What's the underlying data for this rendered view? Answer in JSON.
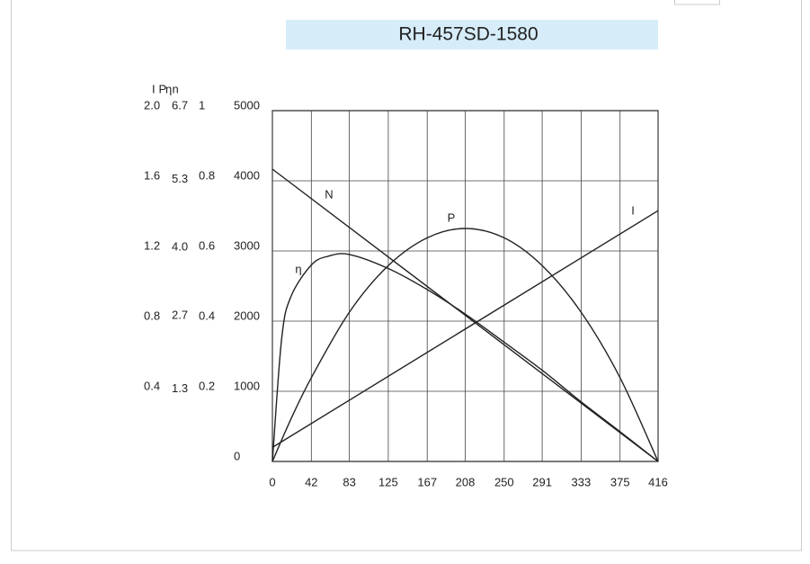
{
  "chart_data": {
    "type": "line",
    "title": "RH-457SD-1580",
    "xlim": [
      0,
      416
    ],
    "xticks": [
      0,
      42,
      83,
      125,
      167,
      208,
      250,
      291,
      333,
      375,
      416
    ],
    "axes": [
      {
        "name": "I",
        "lim": [
          0,
          2
        ],
        "ticks": [
          0.4,
          0.8,
          1.2,
          1.6,
          {
            "value": 2,
            "label": "2.0"
          }
        ]
      },
      {
        "name": "P",
        "lim": [
          0,
          6.7
        ],
        "ticks": [
          1.3,
          2.7,
          {
            "value": 4,
            "label": "4.0"
          },
          5.3,
          6.7
        ]
      },
      {
        "name": "η",
        "lim": [
          0,
          1
        ],
        "ticks": [
          0.2,
          0.4,
          0.6,
          0.8,
          1
        ]
      },
      {
        "name": "n",
        "lim": [
          0,
          5000
        ],
        "ticks": [
          0,
          1000,
          2000,
          3000,
          4000,
          5000
        ]
      }
    ],
    "grid": true,
    "color": "#222222",
    "series": [
      {
        "name": "N",
        "axis": "n",
        "x": [
          0,
          416
        ],
        "values": [
          4167,
          0
        ]
      },
      {
        "name": "P",
        "axis": "P",
        "x": [
          0,
          20,
          42,
          83,
          125,
          167,
          208,
          250,
          291,
          333,
          375,
          416
        ],
        "values": [
          0,
          0.81,
          1.6,
          2.85,
          3.74,
          4.27,
          4.45,
          4.27,
          3.74,
          2.85,
          1.6,
          0
        ]
      },
      {
        "name": "η",
        "axis": "η",
        "x": [
          0,
          10,
          20,
          42,
          60,
          83,
          125,
          167,
          208,
          250,
          291,
          333,
          375,
          416
        ],
        "values": [
          0,
          0.35,
          0.47,
          0.56,
          0.585,
          0.59,
          0.55,
          0.49,
          0.42,
          0.34,
          0.26,
          0.17,
          0.085,
          0
        ]
      },
      {
        "name": "I",
        "axis": "I",
        "x": [
          0,
          416
        ],
        "values": [
          0.08,
          1.43
        ]
      }
    ]
  }
}
